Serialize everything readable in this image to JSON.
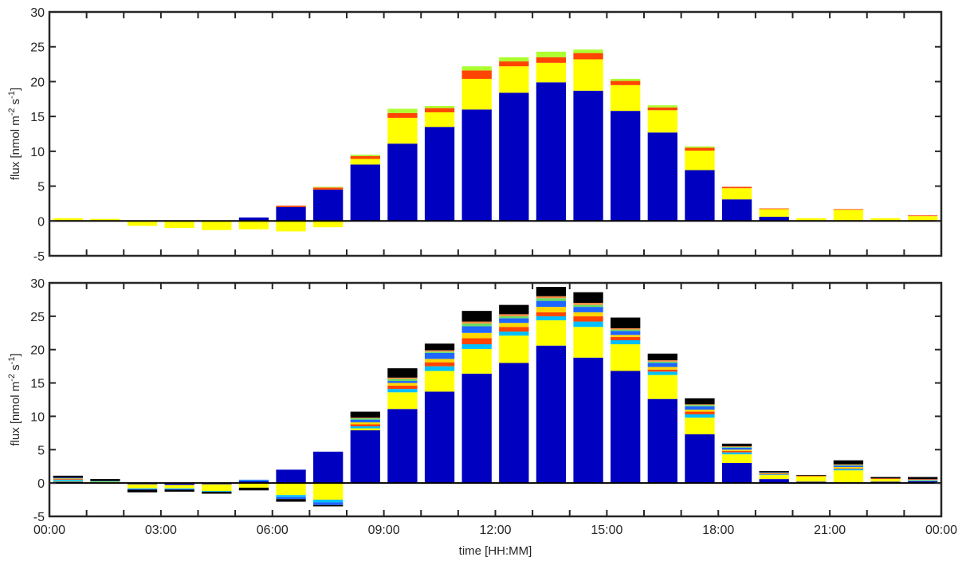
{
  "chart_data": [
    {
      "type": "bar",
      "stacked": true,
      "ylabel": "flux [nmol m-2 s-1]",
      "ylim": [
        -5,
        30
      ],
      "yticks": [
        -5,
        0,
        5,
        10,
        15,
        20,
        25,
        30
      ],
      "x": [
        0.5,
        1.5,
        2.5,
        3.5,
        4.5,
        5.5,
        6.5,
        7.5,
        8.5,
        9.5,
        10.5,
        11.5,
        12.5,
        13.5,
        14.5,
        15.5,
        16.5,
        17.5,
        18.5,
        19.5,
        20.5,
        21.5,
        22.5,
        23.5
      ],
      "colors": [
        "#0000c0",
        "#ffff00",
        "#ff4500",
        "#adff2f"
      ],
      "series": [
        {
          "color": "#0000c0",
          "values": [
            0.0,
            0.0,
            0.0,
            0.0,
            0.0,
            0.5,
            2.0,
            4.5,
            8.1,
            11.1,
            13.5,
            16.0,
            18.4,
            19.9,
            18.7,
            15.8,
            12.7,
            7.3,
            3.1,
            0.6,
            0.0,
            0.0,
            0.0,
            0.0
          ]
        },
        {
          "color": "#ffff00",
          "values": [
            0.4,
            0.3,
            -0.7,
            -1.0,
            -1.3,
            -1.2,
            -1.5,
            -0.9,
            0.8,
            3.7,
            2.1,
            4.4,
            3.8,
            2.8,
            4.5,
            3.7,
            3.2,
            2.8,
            1.6,
            1.1,
            0.4,
            1.6,
            0.4,
            0.7
          ]
        },
        {
          "color": "#ff4500",
          "values": [
            0.0,
            0.0,
            0.0,
            0.0,
            0.0,
            0.0,
            0.2,
            0.3,
            0.4,
            0.7,
            0.6,
            1.2,
            0.7,
            0.8,
            0.9,
            0.6,
            0.4,
            0.4,
            0.2,
            0.1,
            0.0,
            0.1,
            0.0,
            0.1
          ]
        },
        {
          "color": "#adff2f",
          "values": [
            0.0,
            0.0,
            0.0,
            0.0,
            0.0,
            0.0,
            0.0,
            0.1,
            0.2,
            0.6,
            0.3,
            0.6,
            0.6,
            0.8,
            0.5,
            0.3,
            0.3,
            0.2,
            0.0,
            0.0,
            0.0,
            0.0,
            0.0,
            0.0
          ]
        }
      ]
    },
    {
      "type": "bar",
      "stacked": true,
      "ylabel": "flux [nmol m-2 s-1]",
      "xlabel": "time [HH:MM]",
      "ylim": [
        -5,
        30
      ],
      "yticks": [
        -5,
        0,
        5,
        10,
        15,
        20,
        25,
        30
      ],
      "xticks": [
        0,
        3,
        6,
        9,
        12,
        15,
        18,
        21,
        24
      ],
      "xticklabels": [
        "00:00",
        "03:00",
        "06:00",
        "09:00",
        "12:00",
        "15:00",
        "18:00",
        "21:00",
        "00:00"
      ],
      "x": [
        0.5,
        1.5,
        2.5,
        3.5,
        4.5,
        5.5,
        6.5,
        7.5,
        8.5,
        9.5,
        10.5,
        11.5,
        12.5,
        13.5,
        14.5,
        15.5,
        16.5,
        17.5,
        18.5,
        19.5,
        20.5,
        21.5,
        22.5,
        23.5
      ],
      "series": [
        {
          "color": "#0000c0",
          "values": [
            0.2,
            0.1,
            -0.2,
            -0.3,
            -0.2,
            0.3,
            2.0,
            4.7,
            7.9,
            11.1,
            13.7,
            16.4,
            18.0,
            20.6,
            18.8,
            16.8,
            12.6,
            7.3,
            3.0,
            0.6,
            0.2,
            0.1,
            0.2,
            0.3
          ]
        },
        {
          "color": "#ffff00",
          "values": [
            0.1,
            0.1,
            -0.6,
            -0.5,
            -1.0,
            -0.7,
            -1.8,
            -2.5,
            0.3,
            2.5,
            3.1,
            3.7,
            4.1,
            3.8,
            4.6,
            4.0,
            3.6,
            2.5,
            1.3,
            0.6,
            0.8,
            1.8,
            0.4,
            0.1
          ]
        },
        {
          "color": "#00bfff",
          "values": [
            0.2,
            0.1,
            -0.1,
            -0.1,
            -0.1,
            0.1,
            -0.3,
            -0.4,
            0.3,
            0.5,
            0.7,
            0.7,
            0.6,
            0.6,
            0.8,
            0.6,
            0.5,
            0.5,
            0.3,
            0.1,
            0.0,
            0.2,
            0.0,
            0.1
          ]
        },
        {
          "color": "#ff4500",
          "values": [
            0.1,
            0.0,
            0.0,
            0.0,
            0.0,
            0.0,
            0.0,
            0.0,
            0.3,
            0.5,
            0.6,
            0.9,
            0.7,
            0.6,
            0.8,
            0.5,
            0.3,
            0.4,
            0.2,
            0.1,
            0.1,
            0.1,
            0.1,
            0.1
          ]
        },
        {
          "color": "#ffd700",
          "values": [
            0.1,
            0.0,
            0.0,
            0.0,
            0.0,
            0.0,
            0.0,
            0.0,
            0.3,
            0.4,
            0.5,
            0.8,
            0.6,
            0.8,
            0.6,
            0.3,
            0.4,
            0.3,
            0.2,
            0.1,
            0.0,
            0.2,
            0.0,
            0.0
          ]
        },
        {
          "color": "#1e66ff",
          "values": [
            0.1,
            0.0,
            -0.1,
            -0.1,
            0.0,
            0.1,
            -0.3,
            -0.4,
            0.4,
            0.3,
            0.9,
            1.0,
            0.7,
            0.9,
            0.8,
            0.6,
            0.6,
            0.5,
            0.3,
            0.1,
            0.0,
            0.2,
            0.0,
            0.0
          ]
        },
        {
          "color": "#66dd66",
          "values": [
            0.0,
            0.0,
            0.0,
            0.0,
            0.0,
            0.0,
            0.0,
            0.0,
            0.2,
            0.3,
            0.2,
            0.4,
            0.3,
            0.4,
            0.3,
            0.2,
            0.2,
            0.2,
            0.1,
            0.0,
            0.0,
            0.1,
            0.0,
            0.0
          ]
        },
        {
          "color": "#ff8c40",
          "values": [
            0.0,
            0.0,
            0.0,
            0.0,
            0.0,
            0.0,
            0.0,
            0.0,
            0.1,
            0.2,
            0.2,
            0.3,
            0.3,
            0.3,
            0.3,
            0.2,
            0.2,
            0.1,
            0.1,
            0.0,
            0.0,
            0.1,
            0.0,
            0.0
          ]
        },
        {
          "color": "#000000",
          "values": [
            0.3,
            0.3,
            -0.4,
            -0.3,
            -0.3,
            -0.4,
            -0.4,
            -0.2,
            0.9,
            1.4,
            1.0,
            1.6,
            1.4,
            1.4,
            1.6,
            1.6,
            1.0,
            0.9,
            0.4,
            0.2,
            0.1,
            0.6,
            0.2,
            0.3
          ]
        }
      ]
    }
  ]
}
